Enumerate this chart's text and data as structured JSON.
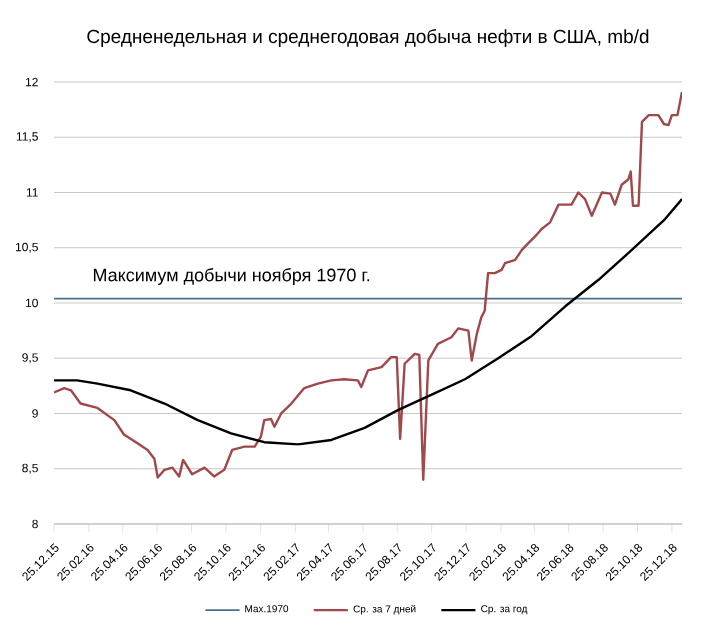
{
  "chart_data": {
    "type": "line",
    "title": "Средненедельная и среднегодовая добыча нефти в США, mb/d",
    "xlim": [
      "2015-12-25",
      "2019-01-12"
    ],
    "xticks": [
      {
        "value": "2015-12-25",
        "label": "25.12.15"
      },
      {
        "value": "2016-02-25",
        "label": "25.02.16"
      },
      {
        "value": "2016-04-25",
        "label": "25.04.16"
      },
      {
        "value": "2016-06-25",
        "label": "25.06.16"
      },
      {
        "value": "2016-08-25",
        "label": "25.08.16"
      },
      {
        "value": "2016-10-25",
        "label": "25.10.16"
      },
      {
        "value": "2016-12-25",
        "label": "25.12.16"
      },
      {
        "value": "2017-02-25",
        "label": "25.02.17"
      },
      {
        "value": "2017-04-25",
        "label": "25.04.17"
      },
      {
        "value": "2017-06-25",
        "label": "25.06.17"
      },
      {
        "value": "2017-08-25",
        "label": "25.08.17"
      },
      {
        "value": "2017-10-25",
        "label": "25.10.17"
      },
      {
        "value": "2017-12-25",
        "label": "25.12.17"
      },
      {
        "value": "2018-02-25",
        "label": "25.02.18"
      },
      {
        "value": "2018-04-25",
        "label": "25.04.18"
      },
      {
        "value": "2018-06-25",
        "label": "25.06.18"
      },
      {
        "value": "2018-08-25",
        "label": "25.08.18"
      },
      {
        "value": "2018-10-25",
        "label": "25.10.18"
      },
      {
        "value": "2018-12-25",
        "label": "25.12.18"
      }
    ],
    "ylim": [
      8,
      12
    ],
    "yticks": [
      8,
      {
        "value": 8.5,
        "label": "8,5"
      },
      9,
      {
        "value": 9.5,
        "label": "9,5"
      },
      10,
      {
        "value": 10.5,
        "label": "10,5"
      },
      11,
      {
        "value": 11.5,
        "label": "11,5"
      },
      12
    ],
    "grid": "y",
    "legend": "bottom",
    "annotations": [
      "Максимум добычи ноября 1970 г."
    ],
    "series": [
      {
        "name": "Мах.1970",
        "color": "#4a7088",
        "x": [
          "2015-12-25",
          "2019-01-12"
        ],
        "values": [
          10.04,
          10.04
        ]
      },
      {
        "name": "Ср. за 7 дней",
        "color": "#a0484a",
        "x": [
          "2015-12-25",
          "2016-01-12",
          "2016-01-24",
          "2016-02-10",
          "2016-03-11",
          "2016-04-10",
          "2016-04-27",
          "2016-05-21",
          "2016-06-08",
          "2016-06-20",
          "2016-06-26",
          "2016-07-08",
          "2016-07-22",
          "2016-08-03",
          "2016-08-10",
          "2016-08-26",
          "2016-09-17",
          "2016-10-04",
          "2016-10-22",
          "2016-11-05",
          "2016-11-27",
          "2016-12-15",
          "2016-12-26",
          "2017-01-01",
          "2017-01-13",
          "2017-01-19",
          "2017-01-31",
          "2017-02-18",
          "2017-03-13",
          "2017-04-06",
          "2017-04-30",
          "2017-05-23",
          "2017-06-16",
          "2017-06-22",
          "2017-07-04",
          "2017-07-28",
          "2017-08-14",
          "2017-08-24",
          "2017-08-30",
          "2017-09-07",
          "2017-09-25",
          "2017-10-03",
          "2017-10-10",
          "2017-10-19",
          "2017-11-05",
          "2017-11-29",
          "2017-12-11",
          "2017-12-29",
          "2018-01-04",
          "2018-01-13",
          "2018-01-21",
          "2018-01-27",
          "2018-02-02",
          "2018-02-14",
          "2018-02-26",
          "2018-03-04",
          "2018-03-22",
          "2018-04-03",
          "2018-04-14",
          "2018-04-26",
          "2018-05-08",
          "2018-05-23",
          "2018-06-07",
          "2018-06-30",
          "2018-07-12",
          "2018-07-24",
          "2018-08-05",
          "2018-08-23",
          "2018-09-07",
          "2018-09-15",
          "2018-09-27",
          "2018-10-09",
          "2018-10-13",
          "2018-10-17",
          "2018-10-27",
          "2018-11-02",
          "2018-11-14",
          "2018-12-01",
          "2018-12-11",
          "2018-12-19",
          "2018-12-25",
          "2019-01-04",
          "2019-01-12"
        ],
        "values": [
          9.19,
          9.23,
          9.21,
          9.09,
          9.05,
          8.94,
          8.81,
          8.73,
          8.67,
          8.59,
          8.42,
          8.49,
          8.51,
          8.43,
          8.58,
          8.45,
          8.51,
          8.43,
          8.49,
          8.67,
          8.7,
          8.7,
          8.79,
          8.94,
          8.95,
          8.88,
          9.0,
          9.09,
          9.23,
          9.27,
          9.3,
          9.31,
          9.3,
          9.24,
          9.39,
          9.42,
          9.51,
          9.51,
          8.77,
          9.45,
          9.54,
          9.53,
          8.4,
          9.48,
          9.63,
          9.69,
          9.77,
          9.75,
          9.48,
          9.72,
          9.87,
          9.93,
          10.27,
          10.27,
          10.3,
          10.36,
          10.39,
          10.48,
          10.54,
          10.6,
          10.67,
          10.73,
          10.89,
          10.89,
          11.0,
          10.94,
          10.79,
          11.0,
          10.99,
          10.89,
          11.07,
          11.12,
          11.19,
          10.88,
          10.88,
          11.64,
          11.7,
          11.7,
          11.62,
          11.61,
          11.7,
          11.7,
          11.91
        ]
      },
      {
        "name": "Ср. за год",
        "color": "#000000",
        "x": [
          "2015-12-25",
          "2016-02-04",
          "2016-03-11",
          "2016-05-09",
          "2016-07-08",
          "2016-09-05",
          "2016-11-03",
          "2017-01-01",
          "2017-03-02",
          "2017-04-30",
          "2017-06-28",
          "2017-08-26",
          "2017-10-25",
          "2017-12-23",
          "2018-02-20",
          "2018-04-20",
          "2018-06-19",
          "2018-08-17",
          "2018-10-15",
          "2018-12-13",
          "2019-01-12"
        ],
        "values": [
          9.3,
          9.3,
          9.27,
          9.21,
          9.09,
          8.94,
          8.82,
          8.74,
          8.72,
          8.76,
          8.87,
          9.03,
          9.17,
          9.31,
          9.5,
          9.7,
          9.97,
          10.21,
          10.48,
          10.76,
          10.94
        ]
      }
    ]
  }
}
